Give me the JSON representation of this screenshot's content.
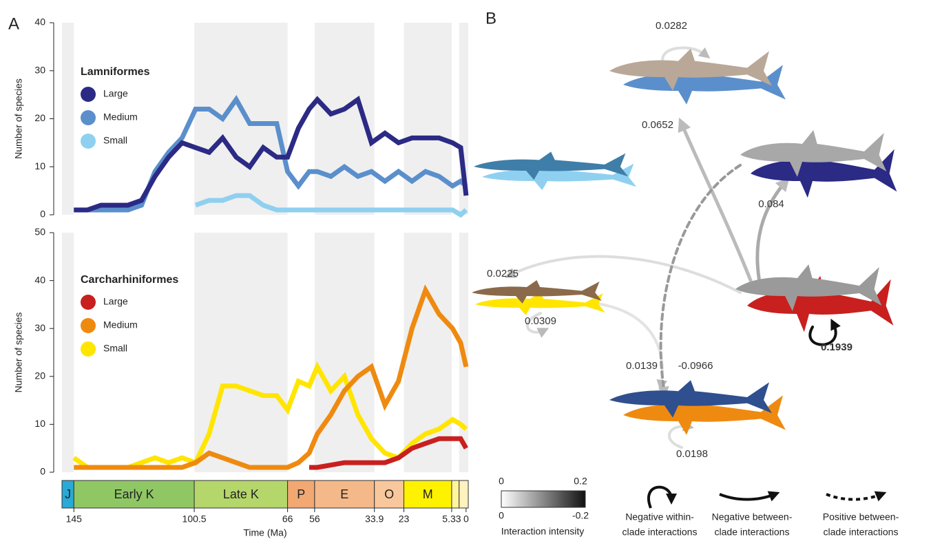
{
  "panel_labels": [
    "A",
    "B"
  ],
  "chart_data": [
    {
      "type": "line",
      "y_label": "Number of species",
      "legend_title": "Lamniformes",
      "xlim": [
        149.4,
        -0.8
      ],
      "ylim": [
        0,
        40
      ],
      "yticks": [
        0,
        10,
        20,
        30,
        40
      ],
      "x": [
        145,
        140,
        135,
        130,
        125,
        120,
        115,
        110,
        105,
        100,
        95,
        90,
        85,
        80,
        75,
        70,
        66,
        62,
        58,
        55,
        50,
        45,
        40,
        35,
        30,
        25,
        20,
        15,
        10,
        5,
        2,
        0
      ],
      "series": [
        {
          "name": "Large",
          "color": "#2b2a85",
          "values": [
            1,
            1,
            2,
            2,
            2,
            3,
            8,
            12,
            15,
            14,
            13,
            16,
            12,
            10,
            14,
            12,
            12,
            18,
            22,
            24,
            21,
            22,
            24,
            15,
            17,
            15,
            16,
            16,
            16,
            15,
            14,
            4
          ]
        },
        {
          "name": "Medium",
          "color": "#5b8fcc",
          "values": [
            1,
            1,
            1,
            1,
            1,
            2,
            9,
            13,
            16,
            22,
            22,
            20,
            24,
            19,
            19,
            19,
            9,
            6,
            9,
            9,
            8,
            10,
            8,
            9,
            7,
            9,
            7,
            9,
            8,
            6,
            7,
            6
          ]
        },
        {
          "name": "Small",
          "color": "#8fd0f0",
          "values": [
            null,
            null,
            null,
            null,
            null,
            null,
            null,
            null,
            null,
            2,
            3,
            3,
            4,
            4,
            2,
            1,
            1,
            1,
            1,
            1,
            1,
            1,
            1,
            1,
            1,
            1,
            1,
            1,
            1,
            1,
            0,
            1
          ]
        }
      ]
    },
    {
      "type": "line",
      "y_label": "Number of species",
      "legend_title": "Carcharhiniformes",
      "x_label": "Time (Ma)",
      "xlim": [
        149.4,
        -0.8
      ],
      "ylim": [
        0,
        50
      ],
      "yticks": [
        0,
        10,
        20,
        30,
        40,
        50
      ],
      "xticks": [
        145,
        100.5,
        66,
        56,
        33.9,
        23,
        5.33,
        0
      ],
      "periods": [
        {
          "label": "J",
          "start": 149.4,
          "end": 145,
          "color": "#29a9d6",
          "shaded": true
        },
        {
          "label": "Early K",
          "start": 145,
          "end": 100.5,
          "color": "#8fc765",
          "shaded": false
        },
        {
          "label": "Late K",
          "start": 100.5,
          "end": 66,
          "color": "#b5d66a",
          "shaded": true
        },
        {
          "label": "P",
          "start": 66,
          "end": 56,
          "color": "#f2a872",
          "shaded": false
        },
        {
          "label": "E",
          "start": 56,
          "end": 33.9,
          "color": "#f5b888",
          "shaded": true
        },
        {
          "label": "O",
          "start": 33.9,
          "end": 23,
          "color": "#f9c79c",
          "shaded": false
        },
        {
          "label": "M",
          "start": 23,
          "end": 5.33,
          "color": "#fff200",
          "shaded": true
        },
        {
          "label": null,
          "start": 5.33,
          "end": 2.58,
          "color": "#fff59a",
          "shaded": false
        },
        {
          "label": null,
          "start": 2.58,
          "end": -0.8,
          "color": "#fff2bf",
          "shaded": true
        }
      ],
      "x": [
        145,
        140,
        135,
        130,
        125,
        120,
        115,
        110,
        105,
        100,
        95,
        90,
        85,
        80,
        75,
        70,
        66,
        62,
        58,
        55,
        50,
        45,
        40,
        35,
        30,
        25,
        20,
        15,
        10,
        5,
        2,
        0
      ],
      "series": [
        {
          "name": "Large",
          "color": "#c8201e",
          "values": [
            null,
            null,
            null,
            null,
            null,
            null,
            null,
            null,
            null,
            null,
            null,
            null,
            null,
            null,
            null,
            null,
            null,
            null,
            1,
            1,
            1.5,
            2,
            2,
            2,
            2,
            3,
            5,
            6,
            7,
            7,
            7,
            5
          ]
        },
        {
          "name": "Medium",
          "color": "#ef8a10",
          "values": [
            1,
            1,
            1,
            1,
            1,
            1,
            1,
            1,
            1,
            2,
            4,
            3,
            2,
            1,
            1,
            1,
            1,
            2,
            4,
            8,
            12,
            17,
            20,
            22,
            14,
            19,
            30,
            38,
            33,
            30,
            27,
            22
          ]
        },
        {
          "name": "Small",
          "color": "#ffe500",
          "values": [
            3,
            1,
            1,
            1,
            1,
            2,
            3,
            2,
            3,
            2,
            8,
            18,
            18,
            17,
            16,
            16,
            13,
            19,
            18,
            22,
            17,
            20,
            12,
            7,
            4,
            3,
            6,
            8,
            9,
            11,
            10,
            9
          ]
        }
      ]
    }
  ],
  "panel_b": {
    "interactions": [
      0.0282,
      0.0652,
      0.084,
      0.0225,
      0.0309,
      0.1939,
      0.0139,
      -0.0966,
      0.0198
    ],
    "colorbar": {
      "top_labels": [
        "0",
        "0.2"
      ],
      "bottom_labels": [
        "0",
        "-0.2"
      ],
      "title": "Interaction intensity"
    },
    "legend": [
      [
        "Negative within-",
        "clade interactions"
      ],
      [
        "Negative between-",
        "clade interactions"
      ],
      [
        "Positive between-",
        "clade interactions"
      ]
    ]
  }
}
